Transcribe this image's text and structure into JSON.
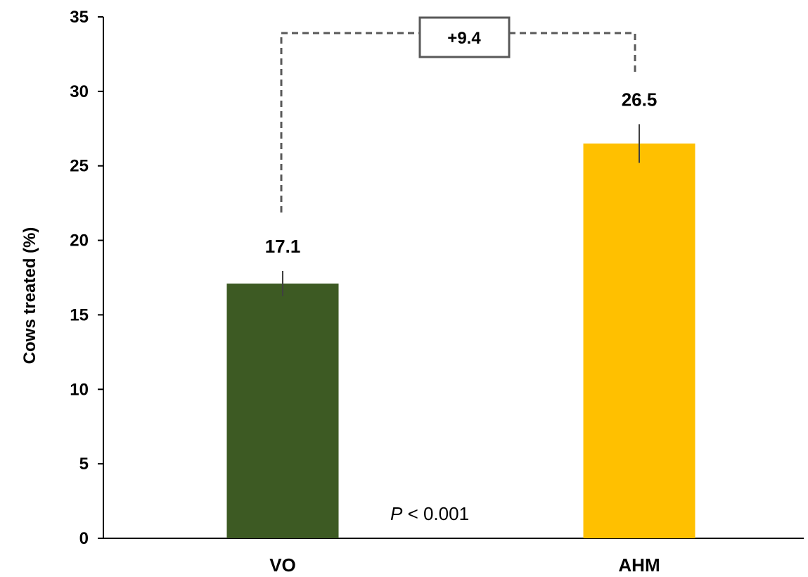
{
  "chart_data": {
    "type": "bar",
    "categories": [
      "VO",
      "AHM"
    ],
    "values": [
      17.1,
      26.5
    ],
    "error": [
      0.85,
      1.3
    ],
    "value_labels": [
      "17.1",
      "26.5"
    ],
    "colors": [
      "#3d5a23",
      "#ffc000"
    ],
    "ylabel": "Cows treated (%)",
    "ylim": [
      0,
      35
    ],
    "yticks": [
      0,
      5,
      10,
      15,
      20,
      25,
      30,
      35
    ],
    "grid": false,
    "annotations": {
      "difference": "+9.4",
      "p_italic": "P",
      "p_rest": " < 0.001"
    }
  }
}
